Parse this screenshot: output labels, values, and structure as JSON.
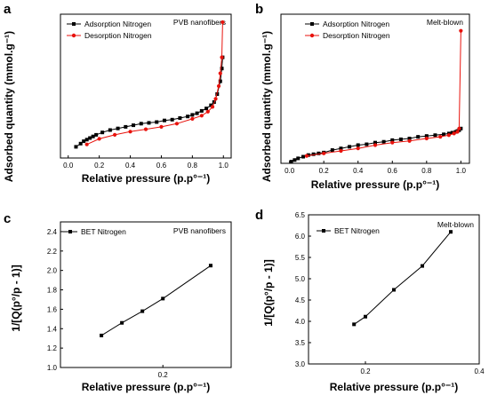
{
  "panels": [
    {
      "letter": "a",
      "note": "PVB nanofibers",
      "xlabel": "Relative pressure (p.p°⁻¹)",
      "ylabel": "Adsorbed quantity (mmol.g⁻¹)"
    },
    {
      "letter": "b",
      "note": "Melt-blown",
      "xlabel": "Relative pressure (p.p°⁻¹)",
      "ylabel": "Adsorbed quantity (mmol.g⁻¹)"
    },
    {
      "letter": "c",
      "note": "PVB nanofibers",
      "xlabel": "Relative pressure (p.p°⁻¹)",
      "ylabel": "1/[Q(p°/p - 1)]"
    },
    {
      "letter": "d",
      "note": "Melt-blown",
      "xlabel": "Relative pressure (p.p°⁻¹)",
      "ylabel": "1/[Q(p°/p - 1)]"
    }
  ],
  "chart_data": [
    {
      "type": "line",
      "xlabel": "Relative pressure (p.p°⁻¹)",
      "ylabel": "Adsorbed quantity (mmol.g⁻¹)",
      "xlim": [
        -0.05,
        1.05
      ],
      "ylim": [
        0,
        0.9
      ],
      "xticks": [
        "0.0",
        "0.2",
        "0.4",
        "0.6",
        "0.8",
        "1.0"
      ],
      "grid": false,
      "legend": "top-left",
      "series": [
        {
          "name": "Adsorption Nitrogen",
          "color": "#000000",
          "marker": "square",
          "x": [
            0.05,
            0.08,
            0.1,
            0.12,
            0.14,
            0.16,
            0.18,
            0.22,
            0.27,
            0.32,
            0.37,
            0.42,
            0.47,
            0.52,
            0.57,
            0.62,
            0.67,
            0.72,
            0.77,
            0.8,
            0.83,
            0.86,
            0.89,
            0.92,
            0.94,
            0.96,
            0.98,
            0.99,
            0.995
          ],
          "y": [
            0.07,
            0.09,
            0.105,
            0.115,
            0.125,
            0.135,
            0.145,
            0.16,
            0.175,
            0.185,
            0.195,
            0.205,
            0.215,
            0.22,
            0.225,
            0.235,
            0.24,
            0.25,
            0.26,
            0.27,
            0.28,
            0.295,
            0.31,
            0.33,
            0.35,
            0.4,
            0.48,
            0.56,
            0.63
          ]
        },
        {
          "name": "Desorption Nitrogen",
          "color": "#e8120c",
          "marker": "circle",
          "x": [
            0.12,
            0.2,
            0.3,
            0.4,
            0.5,
            0.6,
            0.7,
            0.8,
            0.86,
            0.9,
            0.93,
            0.95,
            0.97,
            0.98,
            0.99,
            0.995
          ],
          "y": [
            0.085,
            0.12,
            0.145,
            0.165,
            0.18,
            0.195,
            0.215,
            0.245,
            0.265,
            0.29,
            0.32,
            0.37,
            0.45,
            0.53,
            0.63,
            0.85
          ]
        }
      ]
    },
    {
      "type": "line",
      "xlabel": "Relative pressure (p.p°⁻¹)",
      "ylabel": "Adsorbed quantity (mmol.g⁻¹)",
      "xlim": [
        -0.05,
        1.05
      ],
      "ylim": [
        0,
        0.9
      ],
      "xticks": [
        "0.0",
        "0.2",
        "0.4",
        "0.6",
        "0.8",
        "1.0"
      ],
      "grid": false,
      "legend": "top-left",
      "series": [
        {
          "name": "Adsorption Nitrogen",
          "color": "#000000",
          "marker": "square",
          "x": [
            0.01,
            0.03,
            0.05,
            0.08,
            0.11,
            0.14,
            0.17,
            0.2,
            0.25,
            0.3,
            0.35,
            0.4,
            0.45,
            0.5,
            0.55,
            0.6,
            0.65,
            0.7,
            0.75,
            0.8,
            0.85,
            0.9,
            0.93,
            0.95,
            0.97,
            0.98,
            0.99,
            1.0
          ],
          "y": [
            0.01,
            0.02,
            0.03,
            0.04,
            0.05,
            0.055,
            0.06,
            0.065,
            0.08,
            0.09,
            0.1,
            0.11,
            0.115,
            0.125,
            0.13,
            0.14,
            0.145,
            0.15,
            0.16,
            0.165,
            0.17,
            0.175,
            0.18,
            0.185,
            0.19,
            0.195,
            0.2,
            0.21
          ]
        },
        {
          "name": "Desorption Nitrogen",
          "color": "#e8120c",
          "marker": "circle",
          "x": [
            0.1,
            0.2,
            0.3,
            0.4,
            0.5,
            0.6,
            0.7,
            0.8,
            0.88,
            0.93,
            0.96,
            0.98,
            0.99,
            1.0
          ],
          "y": [
            0.045,
            0.06,
            0.075,
            0.09,
            0.11,
            0.125,
            0.135,
            0.15,
            0.16,
            0.17,
            0.18,
            0.19,
            0.21,
            0.8
          ]
        }
      ]
    },
    {
      "type": "line",
      "xlabel": "Relative pressure (p.p°⁻¹)",
      "ylabel": "1/[Q(p°/p - 1)]",
      "xlim": [
        0.05,
        0.3
      ],
      "ylim": [
        1.0,
        2.5
      ],
      "xticks": [
        "0.2"
      ],
      "yticks": [
        "1.0",
        "1.2",
        "1.4",
        "1.6",
        "1.8",
        "2.0",
        "2.2",
        "2.4"
      ],
      "grid": false,
      "legend": "top-left",
      "series": [
        {
          "name": "BET Nitrogen",
          "color": "#000000",
          "marker": "square",
          "x": [
            0.11,
            0.14,
            0.17,
            0.2,
            0.27
          ],
          "y": [
            1.33,
            1.46,
            1.58,
            1.71,
            2.05
          ]
        }
      ]
    },
    {
      "type": "line",
      "xlabel": "Relative pressure (p.p°⁻¹)",
      "ylabel": "1/[Q(p°/p - 1)]",
      "xlim": [
        0.1,
        0.4
      ],
      "ylim": [
        3.0,
        6.5
      ],
      "xticks": [
        "0.2",
        "0.4"
      ],
      "yticks": [
        "3.0",
        "3.5",
        "4.0",
        "4.5",
        "5.0",
        "5.5",
        "6.0",
        "6.5"
      ],
      "grid": false,
      "legend": "top-left",
      "series": [
        {
          "name": "BET Nitrogen",
          "color": "#000000",
          "marker": "square",
          "x": [
            0.18,
            0.2,
            0.25,
            0.3,
            0.35
          ],
          "y": [
            3.93,
            4.11,
            4.74,
            5.3,
            6.1
          ]
        }
      ]
    }
  ]
}
